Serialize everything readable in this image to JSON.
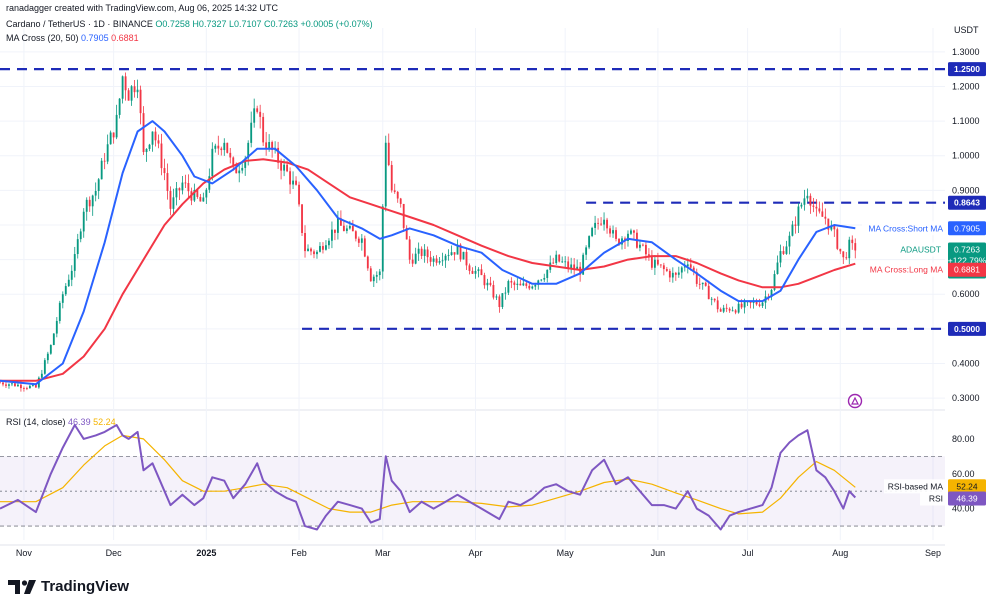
{
  "header": {
    "credit": "ranadagger created with TradingView.com, Aug 06, 2025 14:32 UTC",
    "symbol": "Cardano / TetherUS · 1D · BINANCE",
    "ohlc": "O0.7258 H0.7327 L0.7107 C0.7263 +0.0005 (+0.07%)",
    "ma_label": "MA Cross (20, 50)",
    "ma_short_value": "0.7905",
    "ma_long_value": "0.6881",
    "rsi_label": "RSI (14, close)",
    "rsi_value": "46.39",
    "rsi_ma_value": "52.24"
  },
  "axis": {
    "currency": "USDT",
    "price_ticks": [
      "1.3000",
      "1.2000",
      "1.1000",
      "1.0000",
      "0.9000",
      "0.8000",
      "0.7000",
      "0.6000",
      "0.5000",
      "0.4000",
      "0.3000"
    ],
    "rsi_ticks": [
      "80.00",
      "60.00",
      "40.00"
    ],
    "time_labels": [
      {
        "text": "Nov",
        "bold": false
      },
      {
        "text": "Dec",
        "bold": false
      },
      {
        "text": "2025",
        "bold": true
      },
      {
        "text": "Feb",
        "bold": false
      },
      {
        "text": "Mar",
        "bold": false
      },
      {
        "text": "Apr",
        "bold": false
      },
      {
        "text": "May",
        "bold": false
      },
      {
        "text": "Jun",
        "bold": false
      },
      {
        "text": "Jul",
        "bold": false
      },
      {
        "text": "Aug",
        "bold": false
      },
      {
        "text": "Sep",
        "bold": false
      }
    ]
  },
  "price_tags": {
    "level_high": "1.2500",
    "level_mid": "0.8643",
    "level_low": "0.5000",
    "ma_short_name": "MA Cross:Short MA",
    "ma_short": "0.7905",
    "symbol_name": "ADAUSDT",
    "last": "0.7263",
    "change": "+122.79%",
    "countdown": "09:27:48",
    "ma_long_name": "MA Cross:Long MA",
    "ma_long": "0.6881",
    "rsi_ma_name": "RSI-based MA",
    "rsi_ma": "52.24",
    "rsi_name": "RSI",
    "rsi": "46.39"
  },
  "brand": "TradingView",
  "colors": {
    "up": "#089981",
    "down": "#f23645",
    "ma_short": "#2962ff",
    "ma_long": "#f23645",
    "rsi": "#7e57c2",
    "rsi_ma": "#f5b400",
    "grid": "#f0f3fa",
    "level": "#1e2bb8"
  },
  "chart_data": {
    "type": "candlestick",
    "symbol": "ADAUSDT",
    "timeframe": "1D",
    "ylim": [
      0.28,
      1.34
    ],
    "horizontal_levels": [
      1.25,
      0.8643,
      0.5
    ],
    "price_path": [
      [
        "2024-10-24",
        0.345
      ],
      [
        "2024-11-05",
        0.33
      ],
      [
        "2024-11-10",
        0.45
      ],
      [
        "2024-11-14",
        0.6
      ],
      [
        "2024-11-18",
        0.7
      ],
      [
        "2024-11-21",
        0.85
      ],
      [
        "2024-11-25",
        0.9
      ],
      [
        "2024-11-28",
        1.0
      ],
      [
        "2024-12-02",
        1.1
      ],
      [
        "2024-12-04",
        1.23
      ],
      [
        "2024-12-06",
        1.18
      ],
      [
        "2024-12-09",
        1.22
      ],
      [
        "2024-12-11",
        1.0
      ],
      [
        "2024-12-14",
        1.08
      ],
      [
        "2024-12-18",
        0.95
      ],
      [
        "2024-12-20",
        0.85
      ],
      [
        "2024-12-24",
        0.92
      ],
      [
        "2024-12-28",
        0.88
      ],
      [
        "2024-12-31",
        0.86
      ],
      [
        "2025-01-03",
        1.0
      ],
      [
        "2025-01-07",
        1.05
      ],
      [
        "2025-01-10",
        0.95
      ],
      [
        "2025-01-14",
        1.0
      ],
      [
        "2025-01-18",
        1.15
      ],
      [
        "2025-01-20",
        1.05
      ],
      [
        "2025-01-24",
        1.0
      ],
      [
        "2025-01-28",
        0.95
      ],
      [
        "2025-01-31",
        0.9
      ],
      [
        "2025-02-03",
        0.73
      ],
      [
        "2025-02-07",
        0.72
      ],
      [
        "2025-02-10",
        0.76
      ],
      [
        "2025-02-14",
        0.8
      ],
      [
        "2025-02-18",
        0.78
      ],
      [
        "2025-02-22",
        0.76
      ],
      [
        "2025-02-25",
        0.65
      ],
      [
        "2025-02-28",
        0.66
      ],
      [
        "2025-03-02",
        1.05
      ],
      [
        "2025-03-04",
        0.9
      ],
      [
        "2025-03-07",
        0.85
      ],
      [
        "2025-03-10",
        0.7
      ],
      [
        "2025-03-14",
        0.72
      ],
      [
        "2025-03-18",
        0.7
      ],
      [
        "2025-03-22",
        0.72
      ],
      [
        "2025-03-26",
        0.73
      ],
      [
        "2025-03-30",
        0.68
      ],
      [
        "2025-04-03",
        0.65
      ],
      [
        "2025-04-07",
        0.6
      ],
      [
        "2025-04-09",
        0.57
      ],
      [
        "2025-04-12",
        0.63
      ],
      [
        "2025-04-16",
        0.62
      ],
      [
        "2025-04-20",
        0.63
      ],
      [
        "2025-04-24",
        0.66
      ],
      [
        "2025-04-28",
        0.7
      ],
      [
        "2025-05-02",
        0.68
      ],
      [
        "2025-05-06",
        0.67
      ],
      [
        "2025-05-10",
        0.78
      ],
      [
        "2025-05-14",
        0.83
      ],
      [
        "2025-05-18",
        0.75
      ],
      [
        "2025-05-22",
        0.78
      ],
      [
        "2025-05-26",
        0.74
      ],
      [
        "2025-05-30",
        0.69
      ],
      [
        "2025-06-03",
        0.67
      ],
      [
        "2025-06-07",
        0.65
      ],
      [
        "2025-06-11",
        0.7
      ],
      [
        "2025-06-14",
        0.64
      ],
      [
        "2025-06-18",
        0.6
      ],
      [
        "2025-06-22",
        0.55
      ],
      [
        "2025-06-25",
        0.56
      ],
      [
        "2025-06-28",
        0.56
      ],
      [
        "2025-07-02",
        0.57
      ],
      [
        "2025-07-06",
        0.58
      ],
      [
        "2025-07-09",
        0.62
      ],
      [
        "2025-07-12",
        0.72
      ],
      [
        "2025-07-15",
        0.76
      ],
      [
        "2025-07-18",
        0.84
      ],
      [
        "2025-07-21",
        0.9
      ],
      [
        "2025-07-24",
        0.83
      ],
      [
        "2025-07-27",
        0.82
      ],
      [
        "2025-07-30",
        0.77
      ],
      [
        "2025-08-02",
        0.7
      ],
      [
        "2025-08-04",
        0.74
      ],
      [
        "2025-08-06",
        0.726
      ]
    ],
    "ma_short_path": [
      [
        "2024-10-24",
        0.35
      ],
      [
        "2024-11-05",
        0.34
      ],
      [
        "2024-11-14",
        0.4
      ],
      [
        "2024-11-21",
        0.55
      ],
      [
        "2024-11-28",
        0.75
      ],
      [
        "2024-12-04",
        0.95
      ],
      [
        "2024-12-09",
        1.07
      ],
      [
        "2024-12-14",
        1.1
      ],
      [
        "2024-12-18",
        1.07
      ],
      [
        "2024-12-24",
        1.0
      ],
      [
        "2024-12-28",
        0.94
      ],
      [
        "2025-01-03",
        0.92
      ],
      [
        "2025-01-10",
        0.96
      ],
      [
        "2025-01-18",
        1.02
      ],
      [
        "2025-01-24",
        1.02
      ],
      [
        "2025-01-31",
        0.97
      ],
      [
        "2025-02-07",
        0.9
      ],
      [
        "2025-02-14",
        0.82
      ],
      [
        "2025-02-22",
        0.79
      ],
      [
        "2025-02-28",
        0.76
      ],
      [
        "2025-03-04",
        0.77
      ],
      [
        "2025-03-10",
        0.79
      ],
      [
        "2025-03-18",
        0.77
      ],
      [
        "2025-03-26",
        0.74
      ],
      [
        "2025-04-03",
        0.72
      ],
      [
        "2025-04-10",
        0.67
      ],
      [
        "2025-04-20",
        0.63
      ],
      [
        "2025-04-28",
        0.63
      ],
      [
        "2025-05-06",
        0.66
      ],
      [
        "2025-05-14",
        0.72
      ],
      [
        "2025-05-22",
        0.76
      ],
      [
        "2025-05-30",
        0.75
      ],
      [
        "2025-06-07",
        0.7
      ],
      [
        "2025-06-14",
        0.66
      ],
      [
        "2025-06-22",
        0.61
      ],
      [
        "2025-06-28",
        0.58
      ],
      [
        "2025-07-06",
        0.58
      ],
      [
        "2025-07-12",
        0.61
      ],
      [
        "2025-07-18",
        0.7
      ],
      [
        "2025-07-24",
        0.78
      ],
      [
        "2025-07-30",
        0.8
      ],
      [
        "2025-08-06",
        0.7905
      ]
    ],
    "ma_long_path": [
      [
        "2024-10-24",
        0.35
      ],
      [
        "2024-11-05",
        0.35
      ],
      [
        "2024-11-14",
        0.37
      ],
      [
        "2024-11-21",
        0.42
      ],
      [
        "2024-11-28",
        0.5
      ],
      [
        "2024-12-04",
        0.6
      ],
      [
        "2024-12-11",
        0.7
      ],
      [
        "2024-12-18",
        0.8
      ],
      [
        "2024-12-24",
        0.86
      ],
      [
        "2024-12-31",
        0.92
      ],
      [
        "2025-01-07",
        0.96
      ],
      [
        "2025-01-14",
        0.985
      ],
      [
        "2025-01-20",
        0.99
      ],
      [
        "2025-01-28",
        0.98
      ],
      [
        "2025-02-04",
        0.96
      ],
      [
        "2025-02-11",
        0.92
      ],
      [
        "2025-02-18",
        0.88
      ],
      [
        "2025-02-25",
        0.86
      ],
      [
        "2025-03-04",
        0.84
      ],
      [
        "2025-03-11",
        0.82
      ],
      [
        "2025-03-18",
        0.8
      ],
      [
        "2025-03-26",
        0.77
      ],
      [
        "2025-04-03",
        0.74
      ],
      [
        "2025-04-12",
        0.71
      ],
      [
        "2025-04-20",
        0.69
      ],
      [
        "2025-04-28",
        0.68
      ],
      [
        "2025-05-06",
        0.67
      ],
      [
        "2025-05-14",
        0.68
      ],
      [
        "2025-05-22",
        0.7
      ],
      [
        "2025-05-30",
        0.71
      ],
      [
        "2025-06-07",
        0.71
      ],
      [
        "2025-06-14",
        0.69
      ],
      [
        "2025-06-22",
        0.66
      ],
      [
        "2025-06-28",
        0.64
      ],
      [
        "2025-07-06",
        0.62
      ],
      [
        "2025-07-12",
        0.62
      ],
      [
        "2025-07-18",
        0.63
      ],
      [
        "2025-07-24",
        0.65
      ],
      [
        "2025-07-30",
        0.67
      ],
      [
        "2025-08-06",
        0.6881
      ]
    ],
    "rsi": {
      "ylim": [
        22,
        92
      ],
      "band_levels": [
        70,
        50,
        30
      ],
      "rsi_path": [
        [
          "2024-10-24",
          40
        ],
        [
          "2024-10-30",
          45
        ],
        [
          "2024-11-05",
          38
        ],
        [
          "2024-11-10",
          60
        ],
        [
          "2024-11-14",
          75
        ],
        [
          "2024-11-18",
          88
        ],
        [
          "2024-11-21",
          80
        ],
        [
          "2024-11-25",
          82
        ],
        [
          "2024-11-28",
          84
        ],
        [
          "2024-12-02",
          88
        ],
        [
          "2024-12-04",
          82
        ],
        [
          "2024-12-06",
          80
        ],
        [
          "2024-12-09",
          84
        ],
        [
          "2024-12-11",
          62
        ],
        [
          "2024-12-14",
          66
        ],
        [
          "2024-12-18",
          50
        ],
        [
          "2024-12-20",
          42
        ],
        [
          "2024-12-24",
          48
        ],
        [
          "2024-12-28",
          42
        ],
        [
          "2024-12-31",
          46
        ],
        [
          "2025-01-03",
          58
        ],
        [
          "2025-01-07",
          56
        ],
        [
          "2025-01-10",
          46
        ],
        [
          "2025-01-14",
          54
        ],
        [
          "2025-01-18",
          66
        ],
        [
          "2025-01-20",
          56
        ],
        [
          "2025-01-24",
          50
        ],
        [
          "2025-01-28",
          46
        ],
        [
          "2025-01-31",
          44
        ],
        [
          "2025-02-03",
          30
        ],
        [
          "2025-02-07",
          28
        ],
        [
          "2025-02-10",
          36
        ],
        [
          "2025-02-14",
          44
        ],
        [
          "2025-02-18",
          42
        ],
        [
          "2025-02-22",
          40
        ],
        [
          "2025-02-25",
          32
        ],
        [
          "2025-02-28",
          34
        ],
        [
          "2025-03-02",
          70
        ],
        [
          "2025-03-04",
          56
        ],
        [
          "2025-03-07",
          50
        ],
        [
          "2025-03-10",
          38
        ],
        [
          "2025-03-14",
          44
        ],
        [
          "2025-03-18",
          40
        ],
        [
          "2025-03-22",
          44
        ],
        [
          "2025-03-26",
          48
        ],
        [
          "2025-03-30",
          44
        ],
        [
          "2025-04-03",
          40
        ],
        [
          "2025-04-07",
          36
        ],
        [
          "2025-04-09",
          34
        ],
        [
          "2025-04-12",
          44
        ],
        [
          "2025-04-16",
          42
        ],
        [
          "2025-04-20",
          46
        ],
        [
          "2025-04-24",
          52
        ],
        [
          "2025-04-28",
          54
        ],
        [
          "2025-05-02",
          50
        ],
        [
          "2025-05-06",
          48
        ],
        [
          "2025-05-10",
          62
        ],
        [
          "2025-05-14",
          68
        ],
        [
          "2025-05-18",
          54
        ],
        [
          "2025-05-22",
          58
        ],
        [
          "2025-05-26",
          50
        ],
        [
          "2025-05-30",
          42
        ],
        [
          "2025-06-03",
          42
        ],
        [
          "2025-06-07",
          40
        ],
        [
          "2025-06-11",
          50
        ],
        [
          "2025-06-14",
          40
        ],
        [
          "2025-06-18",
          36
        ],
        [
          "2025-06-22",
          28
        ],
        [
          "2025-06-25",
          36
        ],
        [
          "2025-06-28",
          38
        ],
        [
          "2025-07-02",
          40
        ],
        [
          "2025-07-06",
          42
        ],
        [
          "2025-07-09",
          52
        ],
        [
          "2025-07-12",
          72
        ],
        [
          "2025-07-15",
          78
        ],
        [
          "2025-07-18",
          82
        ],
        [
          "2025-07-21",
          85
        ],
        [
          "2025-07-24",
          62
        ],
        [
          "2025-07-27",
          58
        ],
        [
          "2025-07-30",
          50
        ],
        [
          "2025-08-02",
          40
        ],
        [
          "2025-08-04",
          50
        ],
        [
          "2025-08-06",
          46.39
        ]
      ],
      "rsi_ma_path": [
        [
          "2024-10-24",
          44
        ],
        [
          "2024-11-05",
          44
        ],
        [
          "2024-11-14",
          52
        ],
        [
          "2024-11-21",
          65
        ],
        [
          "2024-11-28",
          76
        ],
        [
          "2024-12-04",
          82
        ],
        [
          "2024-12-11",
          80
        ],
        [
          "2024-12-18",
          68
        ],
        [
          "2024-12-24",
          56
        ],
        [
          "2024-12-31",
          50
        ],
        [
          "2025-01-07",
          50
        ],
        [
          "2025-01-14",
          52
        ],
        [
          "2025-01-20",
          54
        ],
        [
          "2025-01-28",
          52
        ],
        [
          "2025-02-04",
          46
        ],
        [
          "2025-02-11",
          40
        ],
        [
          "2025-02-18",
          38
        ],
        [
          "2025-02-25",
          38
        ],
        [
          "2025-03-04",
          42
        ],
        [
          "2025-03-11",
          44
        ],
        [
          "2025-03-18",
          44
        ],
        [
          "2025-03-26",
          44
        ],
        [
          "2025-04-03",
          43
        ],
        [
          "2025-04-12",
          41
        ],
        [
          "2025-04-20",
          42
        ],
        [
          "2025-04-28",
          46
        ],
        [
          "2025-05-06",
          50
        ],
        [
          "2025-05-14",
          55
        ],
        [
          "2025-05-22",
          57
        ],
        [
          "2025-05-30",
          54
        ],
        [
          "2025-06-07",
          49
        ],
        [
          "2025-06-14",
          45
        ],
        [
          "2025-06-22",
          40
        ],
        [
          "2025-06-28",
          37
        ],
        [
          "2025-07-06",
          38
        ],
        [
          "2025-07-12",
          46
        ],
        [
          "2025-07-18",
          58
        ],
        [
          "2025-07-24",
          67
        ],
        [
          "2025-07-30",
          62
        ],
        [
          "2025-08-06",
          52.24
        ]
      ]
    }
  }
}
